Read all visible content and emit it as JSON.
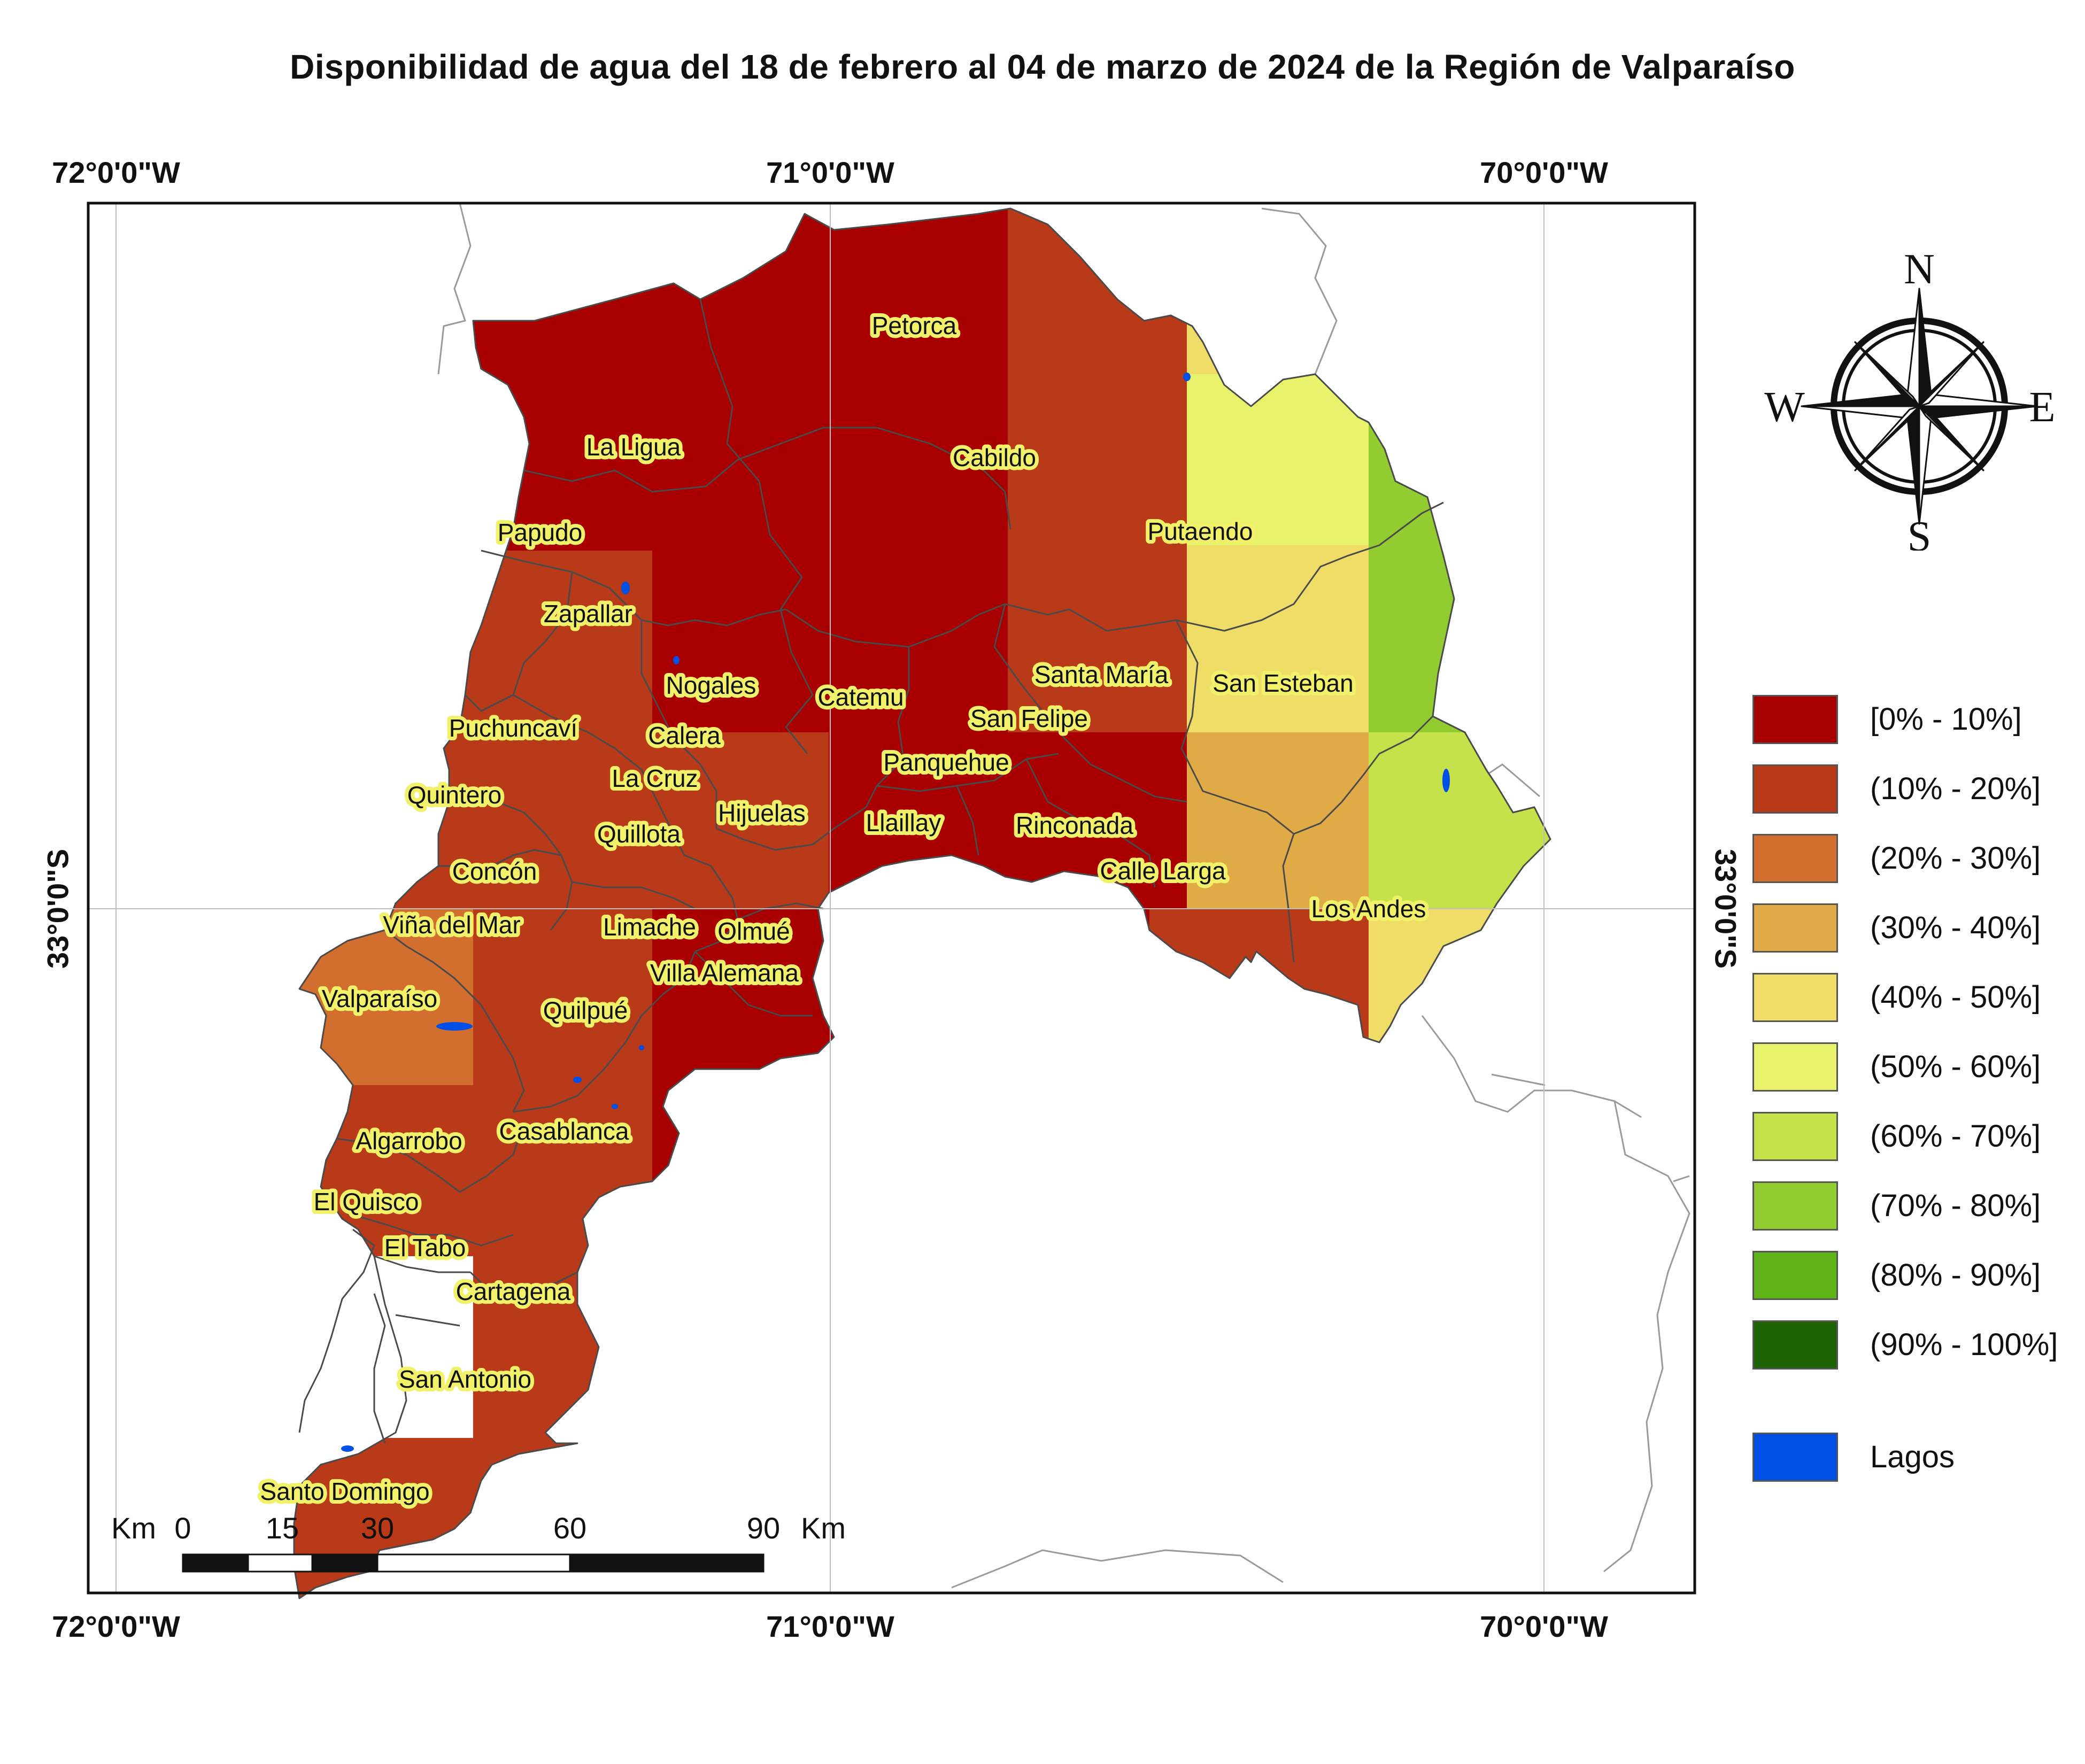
{
  "title": "Disponibilidad de agua del 18 de febrero al 04 de marzo de 2024 de la Región de Valparaíso",
  "graticule": {
    "lon_labels": [
      "72°0'0\"W",
      "71°0'0\"W",
      "70°0'0\"W"
    ],
    "lat_label": "33°0'0\"S"
  },
  "communes": [
    "Petorca",
    "La Ligua",
    "Cabildo",
    "Papudo",
    "Putaendo",
    "Zapallar",
    "Nogales",
    "Catemu",
    "Santa María",
    "San Esteban",
    "Puchuncaví",
    "Calera",
    "San Felipe",
    "Panquehue",
    "Quintero",
    "La Cruz",
    "Hijuelas",
    "Llaillay",
    "Rinconada",
    "Quillota",
    "Concón",
    "Calle Larga",
    "Los Andes",
    "Viña del Mar",
    "Limache",
    "Olmué",
    "Villa Alemana",
    "Valparaíso",
    "Quilpué",
    "Casablanca",
    "Algarrobo",
    "El Quisco",
    "El Tabo",
    "Cartagena",
    "San Antonio",
    "Santo Domingo"
  ],
  "scale_bar": {
    "unit": "Km",
    "ticks": [
      "0",
      "15",
      "30",
      "60",
      "90"
    ]
  },
  "compass": {
    "north": "N",
    "south": "S",
    "east": "E",
    "west": "W"
  },
  "legend": [
    {
      "label": "[0% - 10%]",
      "color": "#a80000"
    },
    {
      "label": "(10% - 20%]",
      "color": "#b83a18"
    },
    {
      "label": "(20% - 30%]",
      "color": "#d26f2f"
    },
    {
      "label": "(30% - 40%]",
      "color": "#e0ab46"
    },
    {
      "label": "(40% - 50%]",
      "color": "#f0dd68"
    },
    {
      "label": "(50% - 60%]",
      "color": "#e8f26b"
    },
    {
      "label": "(60% - 70%]",
      "color": "#c5e24a"
    },
    {
      "label": "(70% - 80%]",
      "color": "#93cc30"
    },
    {
      "label": "(80% - 90%]",
      "color": "#5db318"
    },
    {
      "label": "(90% - 100%]",
      "color": "#1e6405"
    },
    {
      "label": "Lagos",
      "color": "#0050e6"
    }
  ]
}
